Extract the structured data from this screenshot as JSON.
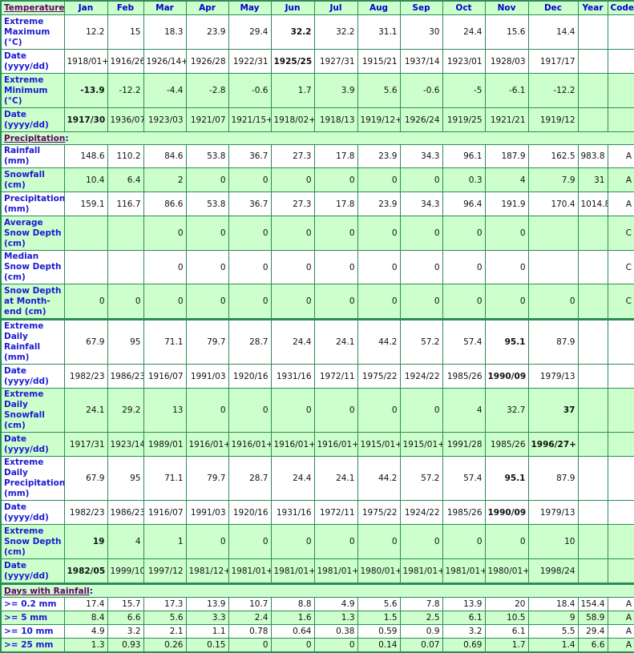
{
  "header": {
    "section": "Temperature",
    "months": [
      "Jan",
      "Feb",
      "Mar",
      "Apr",
      "May",
      "Jun",
      "Jul",
      "Aug",
      "Sep",
      "Oct",
      "Nov",
      "Dec"
    ],
    "year": "Year",
    "code": "Code"
  },
  "colors": {
    "green": "#ccffcc",
    "border": "#2e8b57",
    "label": "#0000cc",
    "section_link": "#660066"
  },
  "sections": [
    {
      "title": "Temperature",
      "rows": [
        {
          "label": "Extreme Maximum (°C)",
          "values": [
            "12.2",
            "15",
            "18.3",
            "23.9",
            "29.4",
            "32.2",
            "32.2",
            "31.1",
            "30",
            "24.4",
            "15.6",
            "14.4",
            "",
            ""
          ],
          "bold": [
            5
          ]
        },
        {
          "label": "Date (yyyy/dd)",
          "values": [
            "1918/01+",
            "1916/26",
            "1926/14+",
            "1926/28",
            "1922/31",
            "1925/25",
            "1927/31",
            "1915/21",
            "1937/14",
            "1923/01",
            "1928/03",
            "1917/17",
            "",
            ""
          ],
          "bold": [
            5
          ]
        },
        {
          "label": "Extreme Minimum (°C)",
          "values": [
            "-13.9",
            "-12.2",
            "-4.4",
            "-2.8",
            "-0.6",
            "1.7",
            "3.9",
            "5.6",
            "-0.6",
            "-5",
            "-6.1",
            "-12.2",
            "",
            ""
          ],
          "bold": [
            0
          ]
        },
        {
          "label": "Date (yyyy/dd)",
          "values": [
            "1917/30",
            "1936/07",
            "1923/03",
            "1921/07",
            "1921/15+",
            "1918/02+",
            "1918/13",
            "1919/12+",
            "1926/24",
            "1919/25",
            "1921/21",
            "1919/12",
            "",
            ""
          ],
          "bold": [
            0
          ]
        }
      ]
    },
    {
      "title": "Precipitation",
      "rows": [
        {
          "label": "Rainfall (mm)",
          "values": [
            "148.6",
            "110.2",
            "84.6",
            "53.8",
            "36.7",
            "27.3",
            "17.8",
            "23.9",
            "34.3",
            "96.1",
            "187.9",
            "162.5",
            "983.8",
            "A"
          ],
          "bold": []
        },
        {
          "label": "Snowfall (cm)",
          "values": [
            "10.4",
            "6.4",
            "2",
            "0",
            "0",
            "0",
            "0",
            "0",
            "0",
            "0.3",
            "4",
            "7.9",
            "31",
            "A"
          ],
          "bold": []
        },
        {
          "label": "Precipitation (mm)",
          "values": [
            "159.1",
            "116.7",
            "86.6",
            "53.8",
            "36.7",
            "27.3",
            "17.8",
            "23.9",
            "34.3",
            "96.4",
            "191.9",
            "170.4",
            "1014.8",
            "A"
          ],
          "bold": []
        },
        {
          "label": "Average Snow Depth (cm)",
          "values": [
            "",
            "",
            "0",
            "0",
            "0",
            "0",
            "0",
            "0",
            "0",
            "0",
            "0",
            "",
            "",
            "C"
          ],
          "bold": []
        },
        {
          "label": "Median Snow Depth (cm)",
          "values": [
            "",
            "",
            "0",
            "0",
            "0",
            "0",
            "0",
            "0",
            "0",
            "0",
            "0",
            "",
            "",
            "C"
          ],
          "bold": []
        },
        {
          "label": "Snow Depth at Month-end (cm)",
          "values": [
            "0",
            "0",
            "0",
            "0",
            "0",
            "0",
            "0",
            "0",
            "0",
            "0",
            "0",
            "0",
            "",
            "C"
          ],
          "bold": []
        },
        {
          "label": "Extreme Daily Rainfall (mm)",
          "values": [
            "67.9",
            "95",
            "71.1",
            "79.7",
            "28.7",
            "24.4",
            "24.1",
            "44.2",
            "57.2",
            "57.4",
            "95.1",
            "87.9",
            "",
            ""
          ],
          "bold": [
            10
          ]
        },
        {
          "label": "Date (yyyy/dd)",
          "values": [
            "1982/23",
            "1986/23",
            "1916/07",
            "1991/03",
            "1920/16",
            "1931/16",
            "1972/11",
            "1975/22",
            "1924/22",
            "1985/26",
            "1990/09",
            "1979/13",
            "",
            ""
          ],
          "bold": [
            10
          ]
        },
        {
          "label": "Extreme Daily Snowfall (cm)",
          "values": [
            "24.1",
            "29.2",
            "13",
            "0",
            "0",
            "0",
            "0",
            "0",
            "0",
            "4",
            "32.7",
            "37",
            "",
            ""
          ],
          "bold": [
            11
          ]
        },
        {
          "label": "Date (yyyy/dd)",
          "values": [
            "1917/31",
            "1923/14",
            "1989/01",
            "1916/01+",
            "1916/01+",
            "1916/01+",
            "1916/01+",
            "1915/01+",
            "1915/01+",
            "1991/28",
            "1985/26",
            "1996/27+",
            "",
            ""
          ],
          "bold": [
            11
          ]
        },
        {
          "label": "Extreme Daily Precipitation (mm)",
          "values": [
            "67.9",
            "95",
            "71.1",
            "79.7",
            "28.7",
            "24.4",
            "24.1",
            "44.2",
            "57.2",
            "57.4",
            "95.1",
            "87.9",
            "",
            ""
          ],
          "bold": [
            10
          ]
        },
        {
          "label": "Date (yyyy/dd)",
          "values": [
            "1982/23",
            "1986/23",
            "1916/07",
            "1991/03",
            "1920/16",
            "1931/16",
            "1972/11",
            "1975/22",
            "1924/22",
            "1985/26",
            "1990/09",
            "1979/13",
            "",
            ""
          ],
          "bold": [
            10
          ]
        },
        {
          "label": "Extreme Snow Depth (cm)",
          "values": [
            "19",
            "4",
            "1",
            "0",
            "0",
            "0",
            "0",
            "0",
            "0",
            "0",
            "0",
            "10",
            "",
            ""
          ],
          "bold": [
            0
          ]
        },
        {
          "label": "Date (yyyy/dd)",
          "values": [
            "1982/05",
            "1999/10",
            "1997/12",
            "1981/12+",
            "1981/01+",
            "1981/01+",
            "1981/01+",
            "1980/01+",
            "1981/01+",
            "1981/01+",
            "1980/01+",
            "1998/24",
            "",
            ""
          ],
          "bold": [
            0
          ]
        }
      ]
    },
    {
      "title": "Days with Rainfall",
      "rows": [
        {
          "label": ">= 0.2 mm",
          "values": [
            "17.4",
            "15.7",
            "17.3",
            "13.9",
            "10.7",
            "8.8",
            "4.9",
            "5.6",
            "7.8",
            "13.9",
            "20",
            "18.4",
            "154.4",
            "A"
          ],
          "bold": []
        },
        {
          "label": ">= 5 mm",
          "values": [
            "8.4",
            "6.6",
            "5.6",
            "3.3",
            "2.4",
            "1.6",
            "1.3",
            "1.5",
            "2.5",
            "6.1",
            "10.5",
            "9",
            "58.9",
            "A"
          ],
          "bold": []
        },
        {
          "label": ">= 10 mm",
          "values": [
            "4.9",
            "3.2",
            "2.1",
            "1.1",
            "0.78",
            "0.64",
            "0.38",
            "0.59",
            "0.9",
            "3.2",
            "6.1",
            "5.5",
            "29.4",
            "A"
          ],
          "bold": []
        },
        {
          "label": ">= 25 mm",
          "values": [
            "1.3",
            "0.93",
            "0.26",
            "0.15",
            "0",
            "0",
            "0",
            "0.14",
            "0.07",
            "0.69",
            "1.7",
            "1.4",
            "6.6",
            "A"
          ],
          "bold": []
        }
      ]
    }
  ]
}
